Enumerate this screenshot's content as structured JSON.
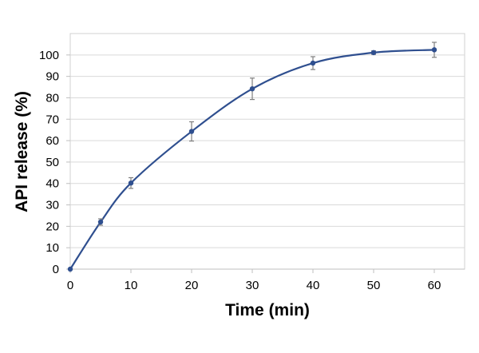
{
  "chart_data": {
    "type": "line",
    "title": "",
    "xlabel": "Time (min)",
    "ylabel": "API release (%)",
    "xlim": [
      0,
      65
    ],
    "ylim": [
      0,
      110
    ],
    "x_ticks": [
      0,
      10,
      20,
      30,
      40,
      50,
      60
    ],
    "y_ticks": [
      0,
      10,
      20,
      30,
      40,
      50,
      60,
      70,
      80,
      90,
      100
    ],
    "grid": "horizontal",
    "smooth": true,
    "series": [
      {
        "color": "#2f4f8f",
        "points": [
          {
            "x": 0,
            "y": 0,
            "err": 0
          },
          {
            "x": 5,
            "y": 22,
            "err": 1.5
          },
          {
            "x": 10,
            "y": 40.2,
            "err": 2.5
          },
          {
            "x": 20,
            "y": 64.3,
            "err": 4.5
          },
          {
            "x": 30,
            "y": 84.2,
            "err": 5
          },
          {
            "x": 40,
            "y": 96.2,
            "err": 3
          },
          {
            "x": 50,
            "y": 101.1,
            "err": 0.8
          },
          {
            "x": 60,
            "y": 102.4,
            "err": 3.5
          }
        ]
      }
    ]
  }
}
